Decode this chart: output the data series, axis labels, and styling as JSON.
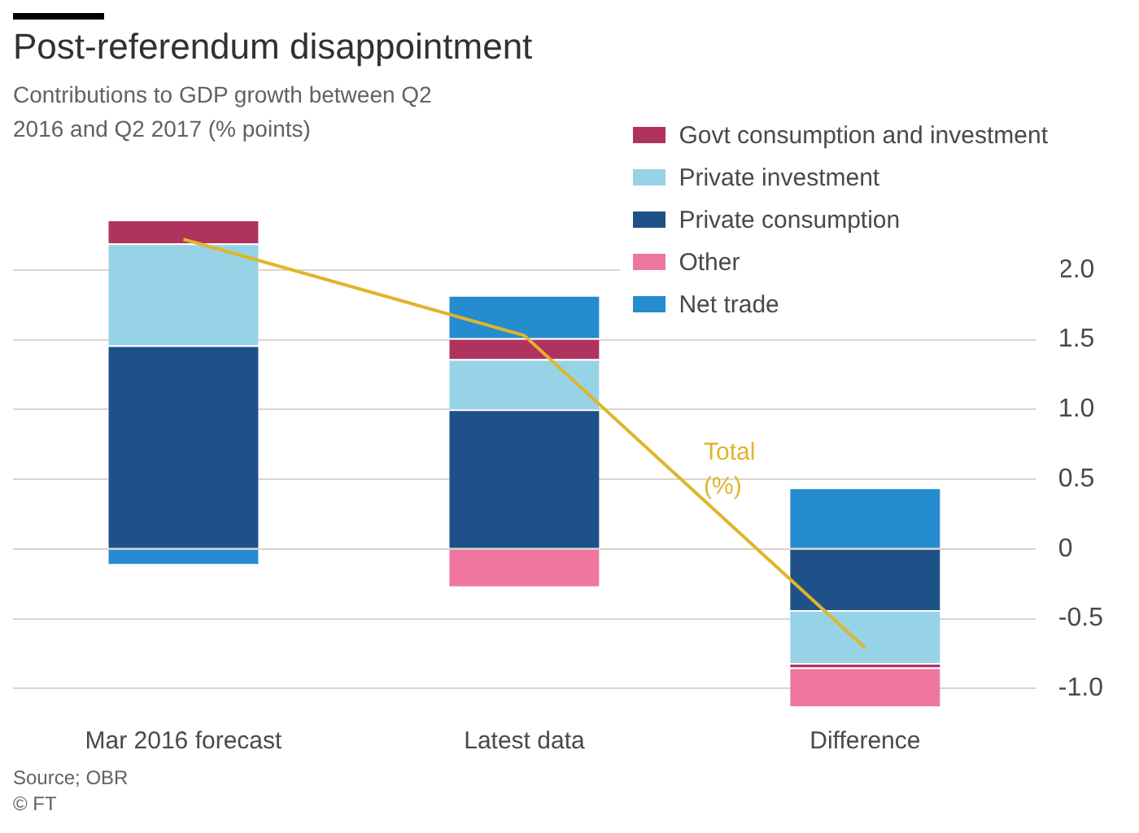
{
  "chart_data": {
    "type": "bar",
    "title": "Post-referendum disappointment",
    "subtitle": "Contributions to GDP growth between Q2 2016 and Q2 2017 (% points)",
    "categories": [
      "Mar 2016 forecast",
      "Latest data",
      "Difference"
    ],
    "stacked": true,
    "series": [
      {
        "name": "Private consumption",
        "color": "#1f5189",
        "values": [
          1.46,
          1.0,
          -0.45
        ]
      },
      {
        "name": "Private investment",
        "color": "#96d3e6",
        "values": [
          0.73,
          0.36,
          -0.38
        ]
      },
      {
        "name": "Govt consumption and investment",
        "color": "#b0325e",
        "values": [
          0.17,
          0.15,
          -0.03
        ]
      },
      {
        "name": "Net trade",
        "color": "#258ccf",
        "values": [
          -0.12,
          0.31,
          0.44
        ]
      },
      {
        "name": "Other",
        "color": "#ee76a0",
        "values": [
          null,
          -0.28,
          -0.28
        ]
      },
      {
        "name": "Total (%)",
        "type": "line",
        "color": "#e0b52b",
        "values": [
          2.22,
          1.53,
          -0.71
        ]
      }
    ],
    "ylim": [
      -1.15,
      2.4
    ],
    "yticks": [
      {
        "value": 2,
        "label": "2.0"
      },
      1.5,
      {
        "value": 1,
        "label": "1.0"
      },
      0.5,
      0,
      -0.5,
      {
        "value": -1,
        "label": "-1.0"
      }
    ],
    "grid": "y",
    "legend": "top right",
    "marker": "none",
    "annotations": [
      "Source; OBR",
      "© FT"
    ]
  }
}
